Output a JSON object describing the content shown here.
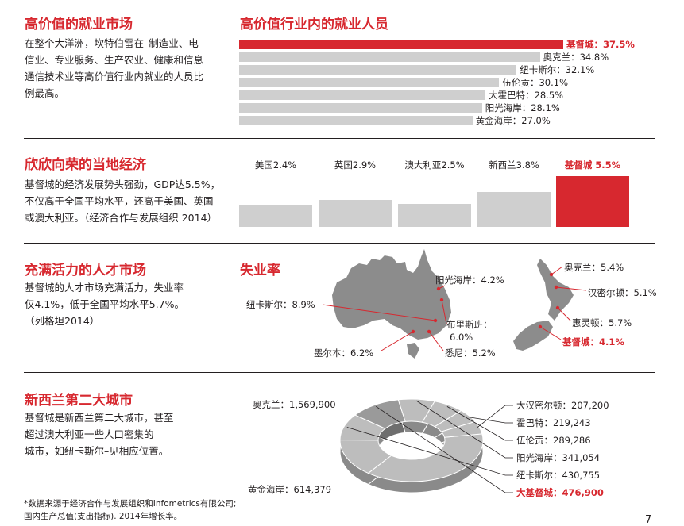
{
  "colors": {
    "accent": "#d7282f",
    "bar": "#cfcfcf",
    "text": "#231f20",
    "map": "#8c8c8c"
  },
  "section1": {
    "title": "高价值的就业市场",
    "body_lines": [
      "在整个大洋洲，坎特伯雷在–制造业、电",
      "信业、专业服务、生产农业、健康和信息",
      "通信技术业等高价值行业内就业的人员比",
      "例最高。"
    ]
  },
  "section2": {
    "title": "欣欣向荣的当地经济",
    "body_lines": [
      "基督城的经济发展势头强劲，GDP达5.5%，",
      "不仅高于全国平均水平，还高于美国、英国",
      "或澳大利亚。（经济合作与发展组织 2014）"
    ]
  },
  "section3": {
    "title": "充满活力的人才市场",
    "body_lines": [
      "基督城的人才市场充满活力，失业率",
      "仅4.1%，低于全国平均水平5.7%。",
      "（列格坦2014）"
    ]
  },
  "section4": {
    "title": "新西兰第二大城市",
    "body_lines": [
      "基督城是新西兰第二大城市，甚至",
      "超过澳大利亚一些人口密集的",
      "城市，如纽卡斯尔–见相应位置。"
    ]
  },
  "footnote": [
    "*数据来源于经济合作与发展组织和Infometrics有限公司;",
    "国内生产总值(支出指标). 2014年增长率。"
  ],
  "page_number": "7",
  "chart_data": [
    {
      "type": "bar",
      "title": "高价值行业内的就业人员",
      "categories": [
        "基督城",
        "奥克兰",
        "纽卡斯尔",
        "伍伦贡",
        "大霍巴特",
        "阳光海岸",
        "黄金海岸"
      ],
      "values": [
        37.5,
        34.8,
        32.1,
        30.1,
        28.5,
        28.1,
        27.0
      ],
      "labels": [
        "基督城：37.5%",
        "奥克兰：34.8%",
        "纽卡斯尔：32.1%",
        "伍伦贡：30.1%",
        "大霍巴特：28.5%",
        "阳光海岸：28.1%",
        "黄金海岸：27.0%"
      ],
      "highlight": "基督城"
    },
    {
      "type": "bar",
      "title": "",
      "categories": [
        "美国",
        "英国",
        "澳大利亚",
        "新西兰",
        "基督城"
      ],
      "values": [
        2.4,
        2.9,
        2.5,
        3.8,
        5.5
      ],
      "labels": [
        "美国2.4%",
        "英国2.9%",
        "澳大利亚2.5%",
        "新西兰3.8%",
        "基督城 5.5%"
      ],
      "highlight": "基督城"
    },
    {
      "type": "map",
      "title": "失业率",
      "points": [
        {
          "name": "阳光海岸",
          "value": 4.2,
          "label": "阳光海岸：4.2%"
        },
        {
          "name": "纽卡斯尔",
          "value": 8.9,
          "label": "纽卡斯尔：8.9%"
        },
        {
          "name": "布里斯班",
          "value": 6.0,
          "label": "布里斯班：",
          "value_label": "6.0%"
        },
        {
          "name": "墨尔本",
          "value": 6.2,
          "label": "墨尔本：6.2%"
        },
        {
          "name": "悉尼",
          "value": 5.2,
          "label": "悉尼：5.2%"
        },
        {
          "name": "奥克兰",
          "value": 5.4,
          "label": "奥克兰：5.4%"
        },
        {
          "name": "汉密尔顿",
          "value": 5.1,
          "label": "汉密尔顿：5.1%"
        },
        {
          "name": "惠灵顿",
          "value": 5.7,
          "label": "惠灵顿：5.7%"
        },
        {
          "name": "基督城",
          "value": 4.1,
          "label": "基督城：4.1%"
        }
      ],
      "highlight": "基督城"
    },
    {
      "type": "pie",
      "categories": [
        "奥克兰",
        "黄金海岸",
        "纽卡斯尔",
        "大基督城",
        "阳光海岸",
        "伍伦贡",
        "霍巴特",
        "大汉密尔顿"
      ],
      "values": [
        1569900,
        614379,
        430755,
        476900,
        341054,
        289286,
        219243,
        207200
      ],
      "labels": [
        "奥克兰：1,569,900",
        "黄金海岸：614,379",
        "纽卡斯尔：430,755",
        "大基督城：476,900",
        "阳光海岸：341,054",
        "伍伦贡：289,286",
        "霍巴特：219,243",
        "大汉密尔顿：207,200"
      ],
      "highlight": "大基督城"
    }
  ]
}
